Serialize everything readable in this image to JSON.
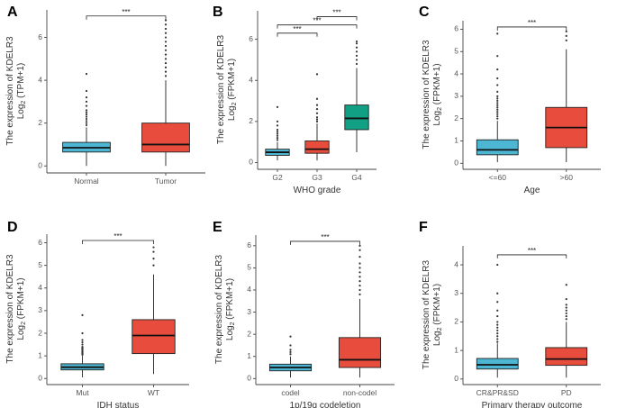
{
  "chart_data": [
    {
      "type": "box",
      "panel": "A",
      "ylabel_top": "The expression of KDELR3",
      "ylabel_bottom": "Log2 (TPM+1)",
      "ylabel_unit": "(TPM+1)",
      "xlabel": "",
      "ylim": [
        -0.2,
        7.2
      ],
      "yticks": [
        0,
        2,
        4,
        6
      ],
      "categories": [
        "Normal",
        "Tumor"
      ],
      "colors": [
        "#4db6d2",
        "#e84c3d"
      ],
      "boxes": [
        {
          "min": 0,
          "q1": 0.65,
          "median": 0.85,
          "q3": 1.1,
          "max": 1.8,
          "outliers": [
            1.9,
            2.0,
            2.1,
            2.2,
            2.3,
            2.4,
            2.5,
            2.6,
            2.8,
            3.0,
            3.2,
            3.5,
            4.3
          ]
        },
        {
          "min": 0,
          "q1": 0.65,
          "median": 1.0,
          "q3": 2.0,
          "max": 4.0,
          "outliers": [
            4.2,
            4.4,
            4.6,
            4.8,
            5.0,
            5.2,
            5.4,
            5.6,
            5.8,
            6.0,
            6.2,
            6.4,
            6.6,
            6.8
          ]
        }
      ],
      "significance": [
        {
          "from": 0,
          "to": 1,
          "y": 7.0,
          "label": "***"
        }
      ]
    },
    {
      "type": "box",
      "panel": "B",
      "ylabel_top": "The expression of KDELR3",
      "ylabel_bottom": "Log2 (FPKM+1)",
      "ylabel_unit": "(FPKM+1)",
      "xlabel": "WHO grade",
      "ylim": [
        -0.2,
        7.3
      ],
      "yticks": [
        0,
        2,
        4,
        6
      ],
      "categories": [
        "G2",
        "G3",
        "G4"
      ],
      "colors": [
        "#4db6d2",
        "#e84c3d",
        "#12a085"
      ],
      "boxes": [
        {
          "min": 0.1,
          "q1": 0.35,
          "median": 0.5,
          "q3": 0.65,
          "max": 1.0,
          "outliers": [
            1.1,
            1.2,
            1.3,
            1.4,
            1.5,
            1.6,
            1.8,
            2.0,
            2.7
          ]
        },
        {
          "min": 0.1,
          "q1": 0.45,
          "median": 0.65,
          "q3": 1.05,
          "max": 1.9,
          "outliers": [
            2.0,
            2.1,
            2.2,
            2.4,
            2.6,
            2.8,
            3.1,
            4.3
          ]
        },
        {
          "min": 0.5,
          "q1": 1.6,
          "median": 2.15,
          "q3": 2.8,
          "max": 4.6,
          "outliers": [
            4.8,
            5.0,
            5.2,
            5.4,
            5.6,
            5.8,
            5.9
          ]
        }
      ],
      "significance": [
        {
          "from": 0,
          "to": 1,
          "y": 6.3,
          "label": "***"
        },
        {
          "from": 0,
          "to": 2,
          "y": 6.7,
          "label": "***"
        },
        {
          "from": 1,
          "to": 2,
          "y": 7.1,
          "label": "***"
        }
      ]
    },
    {
      "type": "box",
      "panel": "C",
      "ylabel_top": "The expression of KDELR3",
      "ylabel_bottom": "Log2 (FPKM+1)",
      "ylabel_unit": "(FPKM+1)",
      "xlabel": "Age",
      "ylim": [
        -0.15,
        6.3
      ],
      "yticks": [
        0,
        1,
        2,
        3,
        4,
        5,
        6
      ],
      "categories": [
        "<=60",
        ">60"
      ],
      "colors": [
        "#4db6d2",
        "#e84c3d"
      ],
      "boxes": [
        {
          "min": 0.05,
          "q1": 0.38,
          "median": 0.6,
          "q3": 1.05,
          "max": 1.9,
          "outliers": [
            2.0,
            2.1,
            2.2,
            2.3,
            2.4,
            2.5,
            2.6,
            2.7,
            2.8,
            2.9,
            3.0,
            3.2,
            3.5,
            3.8,
            4.2,
            4.8,
            5.8
          ]
        },
        {
          "min": 0.05,
          "q1": 0.7,
          "median": 1.6,
          "q3": 2.5,
          "max": 5.1,
          "outliers": [
            5.5,
            5.7,
            5.9
          ]
        }
      ],
      "significance": [
        {
          "from": 0,
          "to": 1,
          "y": 6.1,
          "label": "***"
        }
      ]
    },
    {
      "type": "box",
      "panel": "D",
      "ylabel_top": "The expression of KDELR3",
      "ylabel_bottom": "Log2 (FPKM+1)",
      "ylabel_unit": "(FPKM+1)",
      "xlabel": "IDH status",
      "ylim": [
        -0.15,
        6.3
      ],
      "yticks": [
        0,
        1,
        2,
        3,
        4,
        5,
        6
      ],
      "categories": [
        "Mut",
        "WT"
      ],
      "colors": [
        "#4db6d2",
        "#e84c3d"
      ],
      "boxes": [
        {
          "min": 0.05,
          "q1": 0.38,
          "median": 0.5,
          "q3": 0.65,
          "max": 1.0,
          "outliers": [
            1.05,
            1.1,
            1.15,
            1.2,
            1.25,
            1.3,
            1.35,
            1.4,
            1.5,
            1.6,
            1.7,
            2.0,
            2.8
          ]
        },
        {
          "min": 0.2,
          "q1": 1.1,
          "median": 1.9,
          "q3": 2.6,
          "max": 4.6,
          "outliers": [
            5.0,
            5.3,
            5.6,
            5.8
          ]
        }
      ],
      "significance": [
        {
          "from": 0,
          "to": 1,
          "y": 6.1,
          "label": "***"
        }
      ]
    },
    {
      "type": "box",
      "panel": "E",
      "ylabel_top": "The expression of KDELR3",
      "ylabel_bottom": "Log2 (FPKM+1)",
      "ylabel_unit": "(FPKM+1)",
      "xlabel": "1p/19q codeletion",
      "ylim": [
        -0.15,
        6.4
      ],
      "yticks": [
        0,
        1,
        2,
        3,
        4,
        5,
        6
      ],
      "categories": [
        "codel",
        "non-codel"
      ],
      "colors": [
        "#4db6d2",
        "#e84c3d"
      ],
      "boxes": [
        {
          "min": 0.05,
          "q1": 0.35,
          "median": 0.5,
          "q3": 0.65,
          "max": 1.0,
          "outliers": [
            1.1,
            1.2,
            1.3,
            1.5,
            1.9
          ]
        },
        {
          "min": 0.05,
          "q1": 0.5,
          "median": 0.85,
          "q3": 1.85,
          "max": 3.6,
          "outliers": [
            3.8,
            4.0,
            4.2,
            4.4,
            4.6,
            4.8,
            5.0,
            5.2,
            5.5,
            5.8,
            6.0
          ]
        }
      ],
      "significance": [
        {
          "from": 0,
          "to": 1,
          "y": 6.2,
          "label": "***"
        }
      ]
    },
    {
      "type": "box",
      "panel": "F",
      "ylabel_top": "The expression of KDELR3",
      "ylabel_bottom": "Log2 (FPKM+1)",
      "ylabel_unit": "(FPKM+1)",
      "xlabel": "Primary therapy outcome",
      "ylim": [
        -0.1,
        4.6
      ],
      "yticks": [
        0,
        1,
        2,
        3,
        4
      ],
      "categories": [
        "CR&PR&SD",
        "PD"
      ],
      "colors": [
        "#4db6d2",
        "#e84c3d"
      ],
      "boxes": [
        {
          "min": 0.05,
          "q1": 0.35,
          "median": 0.5,
          "q3": 0.72,
          "max": 1.25,
          "outliers": [
            1.3,
            1.4,
            1.5,
            1.6,
            1.7,
            1.8,
            1.9,
            2.0,
            2.2,
            2.4,
            2.7,
            3.0,
            4.0
          ]
        },
        {
          "min": 0.05,
          "q1": 0.48,
          "median": 0.7,
          "q3": 1.1,
          "max": 2.0,
          "outliers": [
            2.1,
            2.2,
            2.3,
            2.4,
            2.5,
            2.6,
            2.8,
            3.3
          ]
        }
      ],
      "significance": [
        {
          "from": 0,
          "to": 1,
          "y": 4.35,
          "label": "***"
        }
      ]
    }
  ]
}
